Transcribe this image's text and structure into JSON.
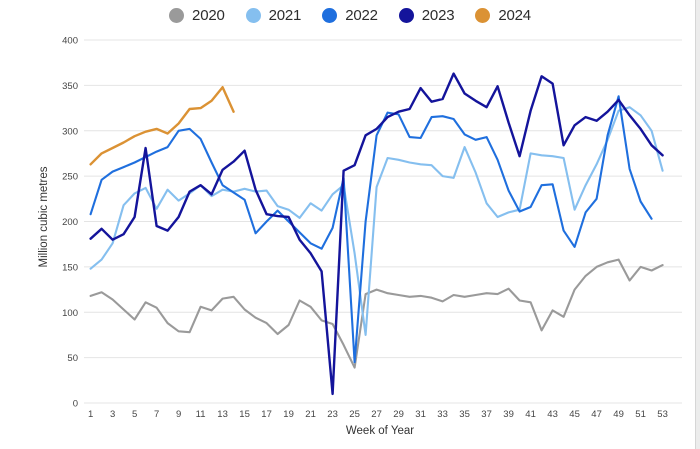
{
  "chart_data": {
    "type": "line",
    "title": "",
    "xlabel": "Week of Year",
    "ylabel": "Million cubic metres",
    "x_axis": {
      "min": 1,
      "max": 53,
      "tick_labels": [
        1,
        3,
        5,
        7,
        9,
        11,
        13,
        15,
        17,
        19,
        21,
        23,
        25,
        27,
        29,
        31,
        33,
        35,
        37,
        39,
        41,
        43,
        45,
        47,
        49,
        51,
        53
      ]
    },
    "y_axis": {
      "min": 0,
      "max": 400,
      "tick_labels": [
        0,
        50,
        100,
        150,
        200,
        250,
        300,
        350,
        400
      ]
    },
    "grid": "horizontal",
    "legend_position": "top-center",
    "colors": {
      "grid": "#e4e4e4",
      "tick_text": "#444444",
      "axis_text": "#333333"
    },
    "series": [
      {
        "name": "2020",
        "color": "#9a9a9a",
        "values": [
          118,
          122,
          114,
          103,
          92,
          111,
          105,
          88,
          79,
          78,
          106,
          102,
          115,
          117,
          103,
          94,
          88,
          76,
          86,
          113,
          106,
          91,
          87,
          64,
          39,
          120,
          125,
          121,
          119,
          117,
          118,
          116,
          112,
          119,
          117,
          119,
          121,
          120,
          126,
          113,
          111,
          80,
          102,
          95,
          125,
          140,
          150,
          155,
          158,
          135,
          150,
          146,
          152
        ]
      },
      {
        "name": "2021",
        "color": "#85bfef",
        "values": [
          148,
          158,
          176,
          218,
          231,
          237,
          214,
          235,
          223,
          231,
          240,
          228,
          235,
          233,
          236,
          233,
          234,
          217,
          213,
          204,
          220,
          212,
          230,
          240,
          165,
          75,
          238,
          270,
          268,
          265,
          263,
          262,
          250,
          248,
          282,
          254,
          220,
          205,
          210,
          213,
          275,
          273,
          272,
          270,
          213,
          240,
          263,
          290,
          322,
          326,
          317,
          300,
          256
        ]
      },
      {
        "name": "2022",
        "color": "#1f6fde",
        "values": [
          208,
          246,
          255,
          260,
          265,
          271,
          277,
          282,
          300,
          302,
          291,
          265,
          240,
          232,
          224,
          187,
          200,
          212,
          200,
          188,
          176,
          170,
          193,
          248,
          45,
          200,
          295,
          320,
          318,
          293,
          292,
          315,
          316,
          313,
          296,
          290,
          293,
          268,
          234,
          211,
          216,
          240,
          241,
          190,
          172,
          210,
          225,
          295,
          338,
          258,
          222,
          203,
          null
        ]
      },
      {
        "name": "2023",
        "color": "#14149b",
        "values": [
          181,
          192,
          180,
          186,
          205,
          281,
          195,
          190,
          205,
          233,
          240,
          230,
          257,
          266,
          278,
          235,
          208,
          206,
          205,
          180,
          165,
          145,
          10,
          256,
          262,
          295,
          302,
          315,
          321,
          324,
          347,
          332,
          335,
          363,
          341,
          333,
          326,
          349,
          309,
          272,
          322,
          360,
          352,
          284,
          306,
          315,
          311,
          321,
          334,
          317,
          302,
          284,
          273
        ]
      },
      {
        "name": "2024",
        "color": "#db9234",
        "values": [
          263,
          275,
          281,
          287,
          294,
          299,
          302,
          297,
          308,
          324,
          325,
          333,
          348,
          321,
          null,
          null,
          null,
          null,
          null,
          null,
          null,
          null,
          null,
          null,
          null,
          null,
          null,
          null,
          null,
          null,
          null,
          null,
          null,
          null,
          null,
          null,
          null,
          null,
          null,
          null,
          null,
          null,
          null,
          null,
          null,
          null,
          null,
          null,
          null,
          null,
          null,
          null,
          null
        ]
      }
    ]
  }
}
